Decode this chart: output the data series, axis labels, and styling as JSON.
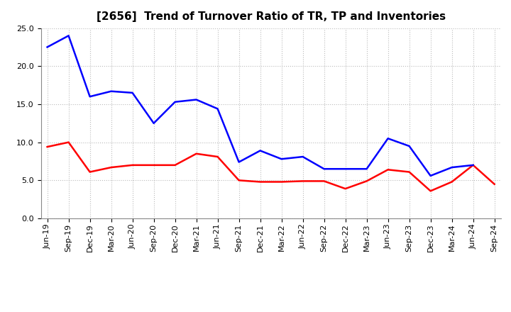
{
  "title": "[2656]  Trend of Turnover Ratio of TR, TP and Inventories",
  "xlabels": [
    "Jun-19",
    "Sep-19",
    "Dec-19",
    "Mar-20",
    "Jun-20",
    "Sep-20",
    "Dec-20",
    "Mar-21",
    "Jun-21",
    "Sep-21",
    "Dec-21",
    "Mar-22",
    "Jun-22",
    "Sep-22",
    "Dec-22",
    "Mar-23",
    "Jun-23",
    "Sep-23",
    "Dec-23",
    "Mar-24",
    "Jun-24",
    "Sep-24"
  ],
  "trade_receivables": [
    9.4,
    10.0,
    6.1,
    6.7,
    7.0,
    7.0,
    7.0,
    8.5,
    8.1,
    5.0,
    4.8,
    4.8,
    4.9,
    4.9,
    3.9,
    4.9,
    6.4,
    6.1,
    3.6,
    4.8,
    7.0,
    4.5
  ],
  "trade_payables": [
    22.5,
    24.0,
    16.0,
    16.7,
    16.5,
    12.5,
    15.3,
    15.6,
    14.4,
    7.4,
    8.9,
    7.8,
    8.1,
    6.5,
    6.5,
    6.5,
    10.5,
    9.5,
    5.6,
    6.7,
    7.0,
    null
  ],
  "inventories": [
    null,
    null,
    null,
    null,
    null,
    null,
    null,
    null,
    null,
    null,
    null,
    null,
    null,
    null,
    null,
    null,
    null,
    null,
    null,
    null,
    null,
    null
  ],
  "ylim": [
    0.0,
    25.0
  ],
  "yticks": [
    0.0,
    5.0,
    10.0,
    15.0,
    20.0,
    25.0
  ],
  "tr_color": "#ff0000",
  "tp_color": "#0000ff",
  "inv_color": "#008000",
  "background_color": "#ffffff",
  "grid_color": "#bbbbbb",
  "title_fontsize": 11,
  "legend_fontsize": 9,
  "tick_fontsize": 8
}
